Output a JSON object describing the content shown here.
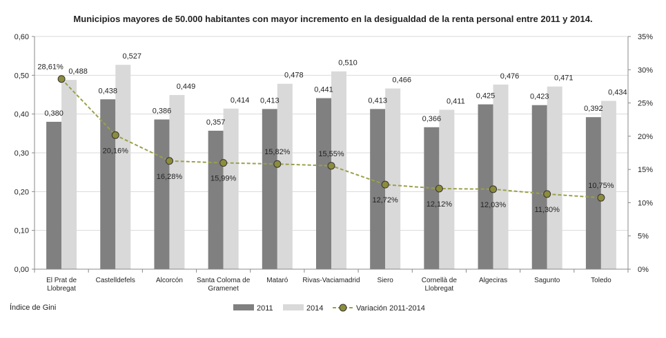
{
  "chart_data": {
    "type": "bar",
    "title": "Municipios mayores de 50.000 habitantes  con mayor incremento en la desigualdad de la renta personal entre 2011 y 2014.",
    "footnote": "Índice de Gini",
    "categories": [
      [
        "El Prat de",
        "Llobregat"
      ],
      [
        "Castelldefels"
      ],
      [
        "Alcorcón"
      ],
      [
        "Santa Coloma de",
        "Gramenet"
      ],
      [
        "Mataró"
      ],
      [
        "Rivas-Vaciamadrid"
      ],
      [
        "Siero"
      ],
      [
        "Cornellà de",
        "Llobregat"
      ],
      [
        "Algeciras"
      ],
      [
        "Sagunto"
      ],
      [
        "Toledo"
      ]
    ],
    "series": [
      {
        "name": "2011",
        "color": "#808080",
        "axis": "left",
        "values": [
          0.38,
          0.438,
          0.386,
          0.357,
          0.413,
          0.441,
          0.413,
          0.366,
          0.425,
          0.423,
          0.392
        ],
        "labels": [
          "0,380",
          "0,438",
          "0,386",
          "0,357",
          "0,413",
          "0,441",
          "0,413",
          "0,366",
          "0,425",
          "0,423",
          "0,392"
        ]
      },
      {
        "name": "2014",
        "color": "#d9d9d9",
        "axis": "left",
        "values": [
          0.488,
          0.527,
          0.449,
          0.414,
          0.478,
          0.51,
          0.466,
          0.411,
          0.476,
          0.471,
          0.434
        ],
        "labels": [
          "0,488",
          "0,527",
          "0,449",
          "0,414",
          "0,478",
          "0,510",
          "0,466",
          "0,411",
          "0,476",
          "0,471",
          "0,434"
        ]
      },
      {
        "name": "Variación 2011-2014",
        "type": "line",
        "color": "#9aa04a",
        "marker_color": "#8c8c3c",
        "axis": "right",
        "values": [
          28.61,
          20.16,
          16.28,
          15.99,
          15.82,
          15.55,
          12.72,
          12.12,
          12.03,
          11.3,
          10.75
        ],
        "labels": [
          "28,61%",
          "20,16%",
          "16,28%",
          "15,99%",
          "15,82%",
          "15,55%",
          "12,72%",
          "12,12%",
          "12,03%",
          "11,30%",
          "10,75%"
        ]
      }
    ],
    "y_left": {
      "ylim": [
        0,
        0.6
      ],
      "ticks": [
        0,
        0.1,
        0.2,
        0.3,
        0.4,
        0.5,
        0.6
      ],
      "tick_labels": [
        "0,00",
        "0,10",
        "0,20",
        "0,30",
        "0,40",
        "0,50",
        "0,60"
      ]
    },
    "y_right": {
      "ylim": [
        0,
        35
      ],
      "ticks": [
        0,
        5,
        10,
        15,
        20,
        25,
        30,
        35
      ],
      "tick_labels": [
        "0%",
        "5%",
        "10%",
        "15%",
        "20%",
        "25%",
        "30%",
        "35%"
      ]
    },
    "grid": true,
    "legend_position": "bottom"
  }
}
